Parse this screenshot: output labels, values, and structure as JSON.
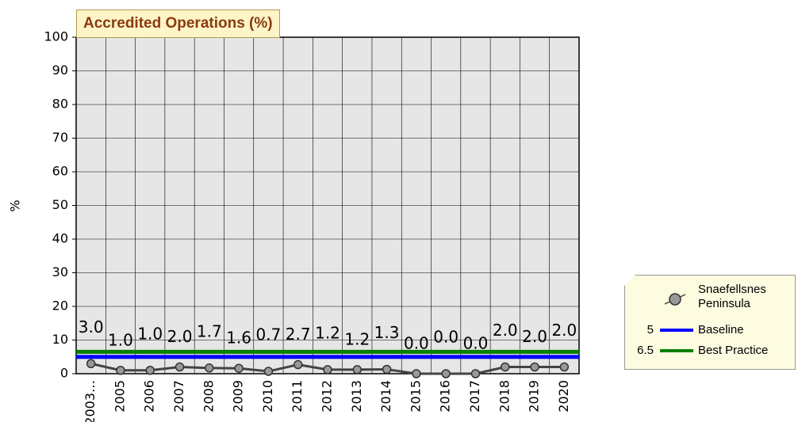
{
  "chart_data": {
    "type": "line",
    "title": "Accredited Operations (%)",
    "ylabel": "%",
    "categories": [
      "2003…",
      "2005",
      "2006",
      "2007",
      "2008",
      "2009",
      "2010",
      "2011",
      "2012",
      "2013",
      "2014",
      "2015",
      "2016",
      "2017",
      "2018",
      "2019",
      "2020"
    ],
    "series": [
      {
        "name": "Snaefellsnes Peninsula",
        "color": "#444444",
        "values": [
          3.0,
          1.0,
          1.0,
          2.0,
          1.7,
          1.6,
          0.7,
          2.7,
          1.2,
          1.2,
          1.3,
          0.0,
          0.0,
          0.0,
          2.0,
          2.0,
          2.0
        ],
        "value_labels": [
          "3.0",
          "1.0",
          "1.0",
          "2.0",
          "1.7",
          "1.6",
          "0.7",
          "2.7",
          "1.2",
          "1.2",
          "1.3",
          "0.0",
          "0.0",
          "0.0",
          "2.0",
          "2.0",
          "2.0"
        ]
      }
    ],
    "reference_lines": [
      {
        "name": "Baseline",
        "value": 5,
        "color": "#0000ff"
      },
      {
        "name": "Best Practice",
        "value": 6.5,
        "color": "#008000"
      }
    ],
    "ylim": [
      0,
      100
    ],
    "yticks": [
      0,
      10,
      20,
      30,
      40,
      50,
      60,
      70,
      80,
      90,
      100
    ],
    "grid": true
  }
}
